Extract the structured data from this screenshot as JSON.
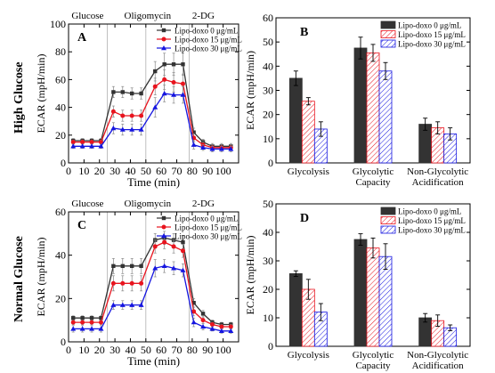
{
  "row_labels": [
    "High Glucose",
    "Normal Glucose"
  ],
  "colors": {
    "lipo0": "#333333",
    "lipo15": "#e8141e",
    "lipo30": "#1515e0",
    "axis": "#000000",
    "event_line": "#b0b0b0"
  },
  "chart_data": [
    {
      "panel": "A",
      "type": "line",
      "xlabel": "Time (min)",
      "ylabel": "ECAR (mpH/min)",
      "xlim": [
        0,
        110
      ],
      "ylim": [
        0,
        100
      ],
      "xticks": [
        0,
        10,
        20,
        30,
        40,
        50,
        60,
        70,
        80,
        90,
        100
      ],
      "yticks": [
        0,
        20,
        40,
        60,
        80,
        100
      ],
      "events": [
        {
          "label": "Glucose",
          "x": 25
        },
        {
          "label": "Oligomycin",
          "x": 50
        },
        {
          "label": "2-DG",
          "x": 78
        }
      ],
      "legend_position": "top-right",
      "x": [
        3,
        9,
        15,
        21,
        29,
        35,
        41,
        47,
        56,
        62,
        68,
        74,
        81,
        87,
        93,
        99,
        105
      ],
      "series": [
        {
          "name": "Lipo-doxo  0 μg/mL",
          "values": [
            16,
            16,
            16,
            16,
            51,
            51,
            50,
            50,
            66,
            71,
            71,
            71,
            22,
            15,
            12,
            12,
            12
          ],
          "err": [
            1.5,
            1.5,
            1.5,
            1.5,
            4,
            4,
            4,
            4,
            7,
            8,
            8,
            8,
            3,
            2,
            2,
            2,
            2
          ]
        },
        {
          "name": "Lipo-doxo 15 μg/mL",
          "values": [
            15,
            15,
            15,
            15,
            37,
            34,
            34,
            34,
            55,
            60,
            58,
            57,
            18,
            13,
            11,
            11,
            11
          ],
          "err": [
            1.5,
            1.5,
            1.5,
            1.5,
            4,
            4,
            4,
            4,
            6,
            7,
            7,
            7,
            3,
            2,
            2,
            2,
            2
          ]
        },
        {
          "name": "Lipo-doxo 30 μg/mL",
          "values": [
            12,
            12,
            12,
            12,
            25,
            24,
            24,
            24,
            40,
            50,
            49,
            49,
            13,
            11,
            10,
            10,
            10
          ],
          "err": [
            1.5,
            1.5,
            1.5,
            1.5,
            4,
            4,
            4,
            4,
            7,
            6,
            6,
            6,
            3,
            2,
            2,
            2,
            2
          ]
        }
      ]
    },
    {
      "panel": "B",
      "type": "bar",
      "ylabel": "ECAR (mpH/min)",
      "ylim": [
        0,
        60
      ],
      "yticks": [
        0,
        10,
        20,
        30,
        40,
        50,
        60
      ],
      "categories": [
        [
          "Glycolysis"
        ],
        [
          "Glycolytic",
          "Capacity"
        ],
        [
          "Non-Glycolytic",
          "Acidification"
        ]
      ],
      "legend_position": "top-right",
      "series": [
        {
          "name": "Lipo-doxo  0 μg/mL",
          "values": [
            35,
            47.5,
            16
          ],
          "err": [
            3,
            4.5,
            2.5
          ]
        },
        {
          "name": "Lipo-doxo 15 μg/mL",
          "values": [
            25.5,
            45.5,
            14.5
          ],
          "err": [
            1.5,
            3.5,
            2.5
          ]
        },
        {
          "name": "Lipo-doxo 30 μg/mL",
          "values": [
            14,
            38,
            12
          ],
          "err": [
            3,
            3.5,
            2.5
          ]
        }
      ]
    },
    {
      "panel": "C",
      "type": "line",
      "xlabel": "Time (min)",
      "ylabel": "ECAR (mpH/min)",
      "xlim": [
        0,
        110
      ],
      "ylim": [
        0,
        60
      ],
      "xticks": [
        0,
        10,
        20,
        30,
        40,
        50,
        60,
        70,
        80,
        90,
        100
      ],
      "yticks": [
        0,
        20,
        40,
        60
      ],
      "events": [
        {
          "label": "Glucose",
          "x": 25
        },
        {
          "label": "Oligomycin",
          "x": 50
        },
        {
          "label": "2-DG",
          "x": 78
        }
      ],
      "legend_position": "top-right",
      "x": [
        3,
        9,
        15,
        21,
        29,
        35,
        41,
        47,
        56,
        62,
        68,
        74,
        81,
        87,
        93,
        99,
        105
      ],
      "series": [
        {
          "name": "Lipo-doxo  0 μg/mL",
          "values": [
            11,
            11,
            11,
            11,
            35,
            35,
            35,
            35,
            47,
            48,
            47,
            46,
            18,
            13,
            9,
            8,
            8
          ],
          "err": [
            1,
            1,
            1,
            1,
            3.5,
            3.5,
            3.5,
            3.5,
            3,
            3,
            3,
            3,
            2,
            1.5,
            1,
            1,
            1
          ]
        },
        {
          "name": "Lipo-doxo 15 μg/mL",
          "values": [
            9,
            9,
            9,
            9,
            27,
            27,
            27,
            27,
            44,
            46,
            44,
            42,
            14,
            10,
            8,
            7,
            7
          ],
          "err": [
            1,
            1,
            1,
            1,
            3.5,
            3.5,
            3.5,
            3.5,
            3,
            3,
            3,
            3,
            2,
            1.5,
            1,
            1,
            1
          ]
        },
        {
          "name": "Lipo-doxo 30 μg/mL",
          "values": [
            6,
            6,
            6,
            6,
            17,
            17,
            17,
            17,
            34,
            35,
            34,
            33,
            9,
            7,
            6,
            5,
            5
          ],
          "err": [
            1.5,
            1.5,
            1.5,
            1.5,
            2,
            2,
            2,
            2,
            4,
            3,
            3,
            3,
            2,
            1.5,
            1,
            1,
            1
          ]
        }
      ]
    },
    {
      "panel": "D",
      "type": "bar",
      "ylabel": "ECAR (mpH/min)",
      "ylim": [
        0,
        50
      ],
      "yticks": [
        0,
        10,
        20,
        30,
        40,
        50
      ],
      "categories": [
        [
          "Glycolysis"
        ],
        [
          "Glycolytic",
          "Capacity"
        ],
        [
          "Non-Glycolytic",
          "Acidification"
        ]
      ],
      "legend_position": "top-right",
      "series": [
        {
          "name": "Lipo-doxo  0 μg/mL",
          "values": [
            25.5,
            37.5,
            10
          ],
          "err": [
            1,
            2,
            1.5
          ]
        },
        {
          "name": "Lipo-doxo 15 μg/mL",
          "values": [
            20,
            34.5,
            9
          ],
          "err": [
            3.5,
            3.5,
            2
          ]
        },
        {
          "name": "Lipo-doxo 30 μg/mL",
          "values": [
            12,
            31.5,
            6.5
          ],
          "err": [
            3,
            4.5,
            1
          ]
        }
      ]
    }
  ]
}
